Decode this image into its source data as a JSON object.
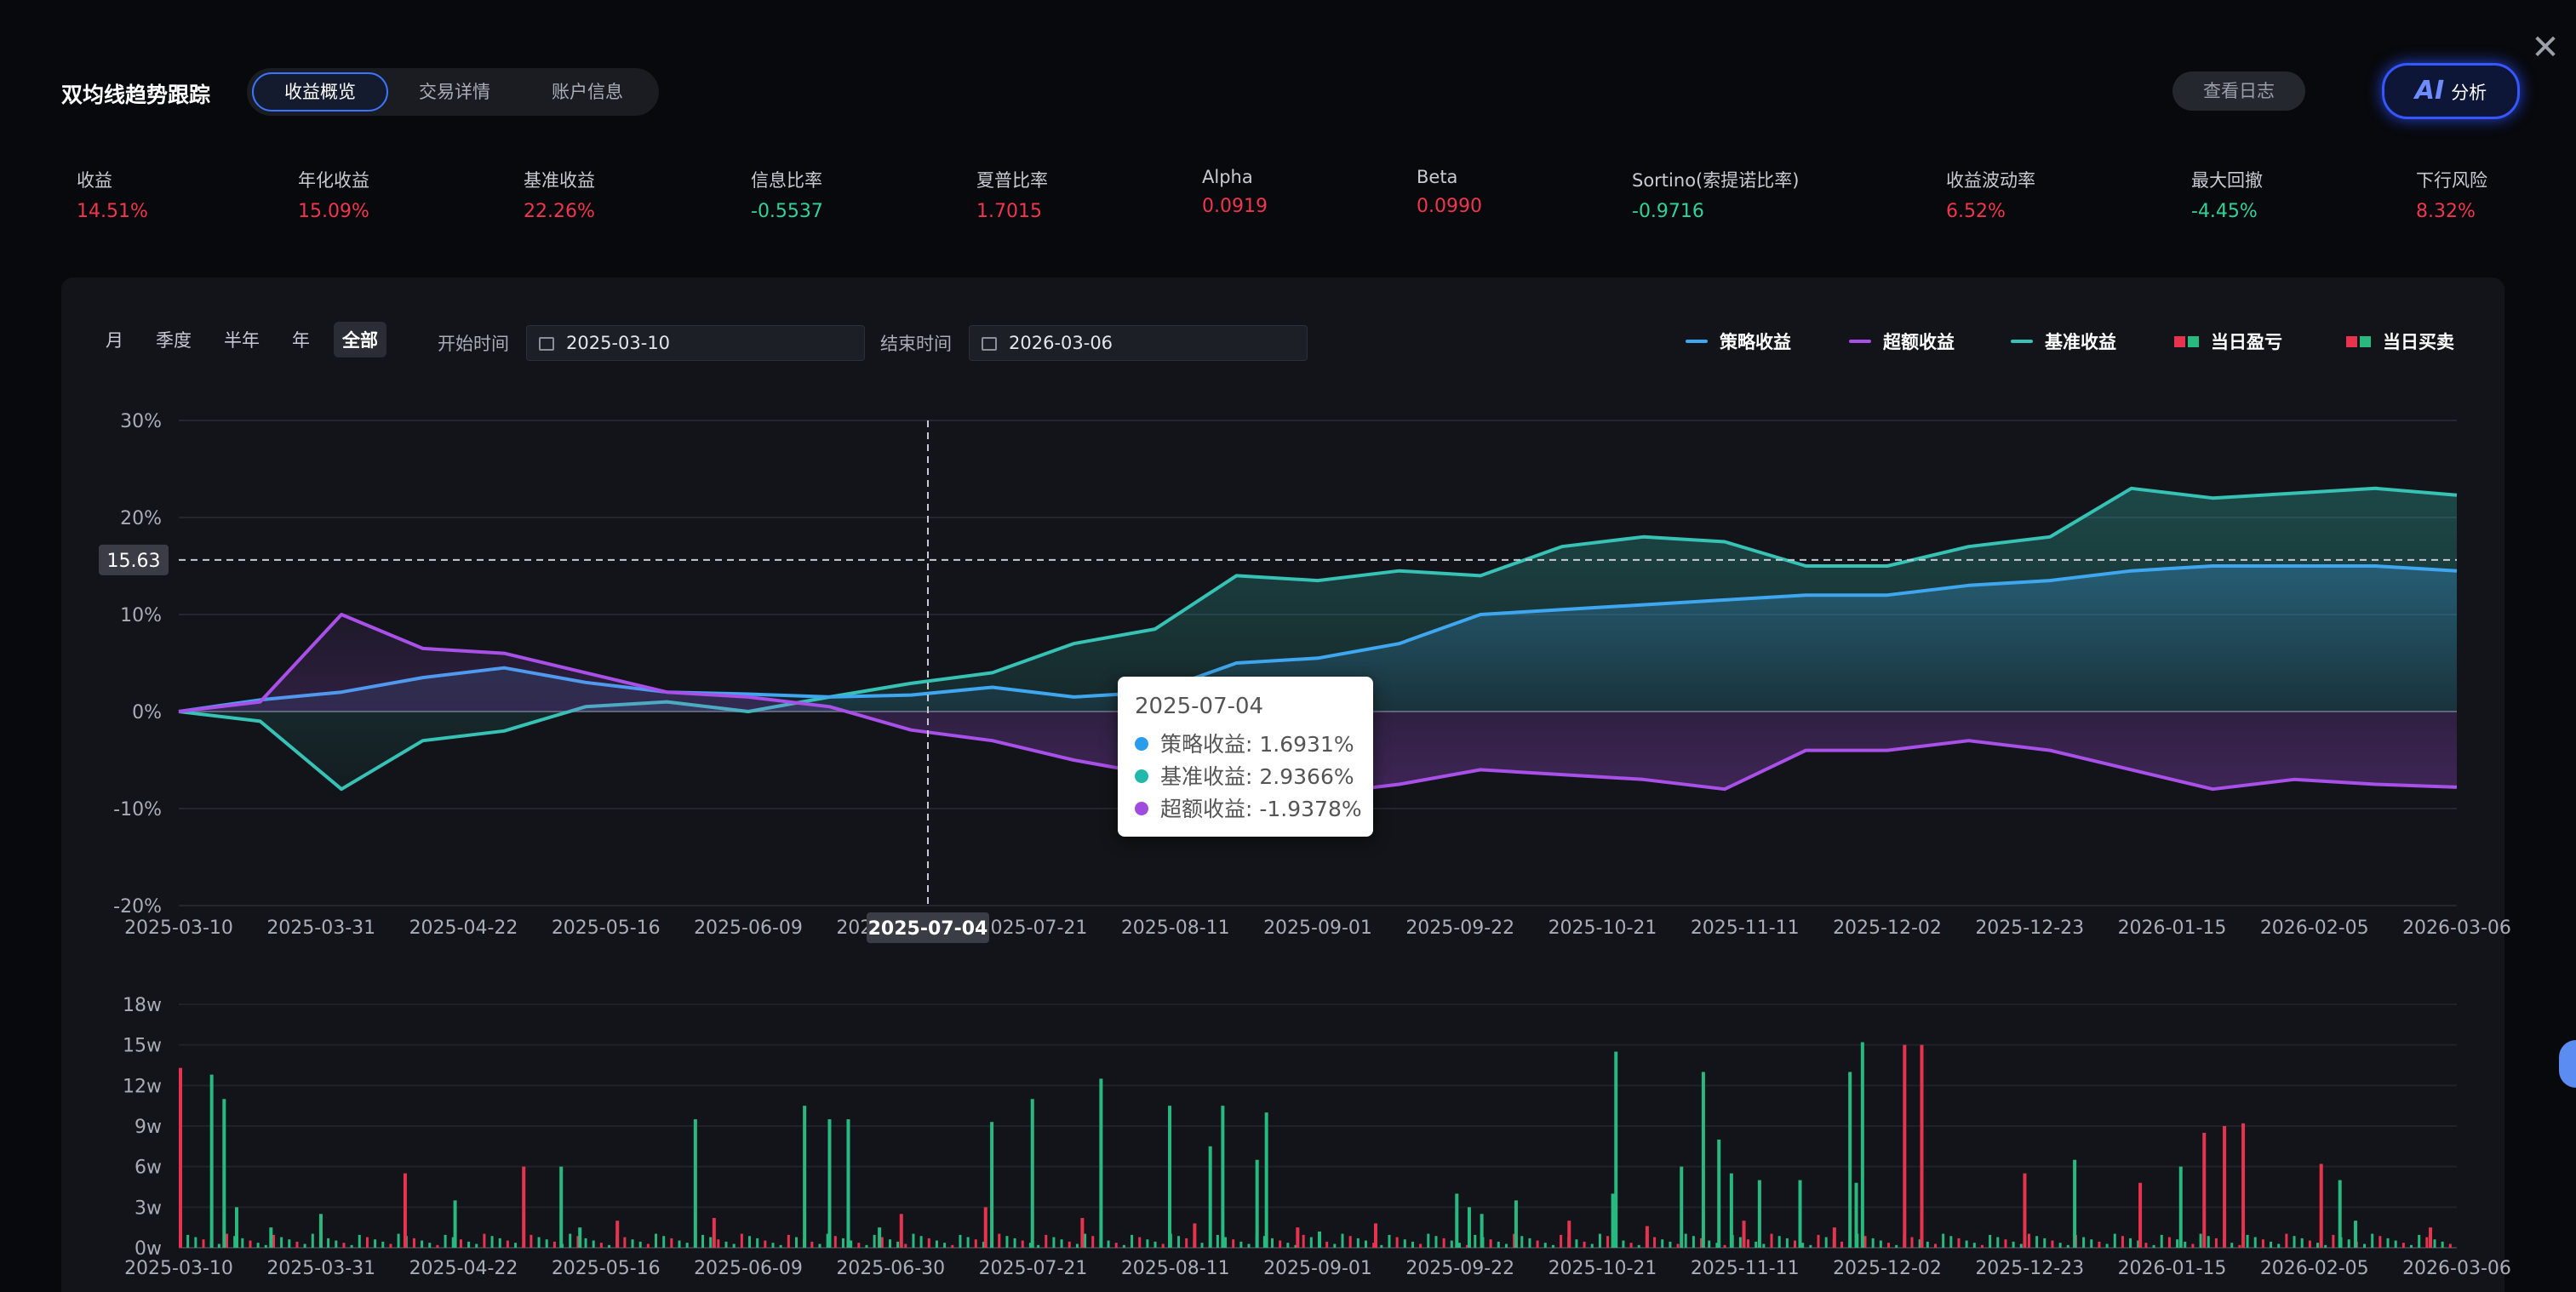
{
  "header": {
    "title": "双均线趋势跟踪",
    "tabs": [
      "收益概览",
      "交易详情",
      "账户信息"
    ],
    "active_tab": "收益概览",
    "log_button": "查看日志",
    "ai_icon_text": "AI",
    "ai_button": "分析"
  },
  "stats": [
    {
      "label": "收益",
      "value": "14.51%",
      "color": "red"
    },
    {
      "label": "年化收益",
      "value": "15.09%",
      "color": "red"
    },
    {
      "label": "基准收益",
      "value": "22.26%",
      "color": "red"
    },
    {
      "label": "信息比率",
      "value": "-0.5537",
      "color": "green"
    },
    {
      "label": "夏普比率",
      "value": "1.7015",
      "color": "red"
    },
    {
      "label": "Alpha",
      "value": "0.0919",
      "color": "red"
    },
    {
      "label": "Beta",
      "value": "0.0990",
      "color": "red"
    },
    {
      "label": "Sortino(索提诺比率)",
      "value": "-0.9716",
      "color": "green"
    },
    {
      "label": "收益波动率",
      "value": "6.52%",
      "color": "red"
    },
    {
      "label": "最大回撤",
      "value": "-4.45%",
      "color": "green"
    },
    {
      "label": "下行风险",
      "value": "8.32%",
      "color": "red"
    }
  ],
  "filters": {
    "periods": [
      "月",
      "季度",
      "半年",
      "年",
      "全部"
    ],
    "active_period": "全部",
    "start_label": "开始时间",
    "start_value": "2025-03-10",
    "end_label": "结束时间",
    "end_value": "2026-03-06"
  },
  "legend": {
    "strategy": "策略收益",
    "excess": "超额收益",
    "benchmark": "基准收益",
    "daily_pnl": "当日盈亏",
    "daily_trade": "当日买卖"
  },
  "colors": {
    "strategy": "#3fa7f0",
    "benchmark": "#36c2b4",
    "excess": "#a850e8",
    "up": "#e8334f",
    "down": "#28b97e",
    "red_text": "#f0354e",
    "green_text": "#2fd39a"
  },
  "crosshair": {
    "y_label": "15.63",
    "x_label": "2025-07-04"
  },
  "tooltip": {
    "date": "2025-07-04",
    "strategy": "策略收益: 1.6931%",
    "benchmark": "基准收益: 2.9366%",
    "excess": "超额收益: -1.9378%"
  },
  "chart_data": [
    {
      "type": "line",
      "x_ticks": [
        "2025-03-10",
        "2025-03-31",
        "2025-04-22",
        "2025-05-16",
        "2025-06-09",
        "2025-06-30",
        "2025-07-21",
        "2025-08-11",
        "2025-09-01",
        "2025-09-22",
        "2025-10-21",
        "2025-11-11",
        "2025-12-02",
        "2025-12-23",
        "2026-01-15",
        "2026-02-05",
        "2026-03-06"
      ],
      "y_ticks": [
        "30%",
        "20%",
        "10%",
        "0%",
        "-10%",
        "-20%"
      ],
      "ylim": [
        -20,
        30
      ],
      "series": [
        {
          "name": "策略收益",
          "values": [
            0,
            1.2,
            2,
            3.5,
            4.5,
            3,
            2,
            1.8,
            1.5,
            1.7,
            2.5,
            1.5,
            2,
            5,
            5.5,
            7,
            10,
            10.5,
            11,
            11.5,
            12,
            12,
            13,
            13.5,
            14.5,
            15,
            15,
            15,
            14.5
          ]
        },
        {
          "name": "基准收益",
          "values": [
            0,
            -1,
            -8,
            -3,
            -2,
            0.5,
            1,
            0,
            1.5,
            2.9,
            4,
            7,
            8.5,
            14,
            13.5,
            14.5,
            14,
            17,
            18,
            17.5,
            15,
            15,
            17,
            18,
            23,
            22,
            22.5,
            23,
            22.3
          ]
        },
        {
          "name": "超额收益",
          "values": [
            0,
            1,
            10,
            6.5,
            6,
            4,
            2,
            1.5,
            0.5,
            -1.9,
            -3,
            -5,
            -6.5,
            -9,
            -8.5,
            -7.5,
            -6,
            -6.5,
            -7,
            -8,
            -4,
            -4,
            -3,
            -4,
            -6,
            -8,
            -7,
            -7.5,
            -7.8
          ]
        }
      ]
    },
    {
      "type": "bar",
      "x_ticks": [
        "2025-03-10",
        "2025-03-31",
        "2025-04-22",
        "2025-05-16",
        "2025-06-09",
        "2025-06-30",
        "2025-07-21",
        "2025-08-11",
        "2025-09-01",
        "2025-09-22",
        "2025-10-21",
        "2025-11-11",
        "2025-12-02",
        "2025-12-23",
        "2026-01-15",
        "2026-02-05",
        "2026-03-06"
      ],
      "y_ticks": [
        "18w",
        "15w",
        "12w",
        "9w",
        "6w",
        "3w",
        "0w"
      ],
      "ylim": [
        0,
        18
      ],
      "series": [
        {
          "name": "当日盈亏",
          "values": [
            [
              0,
              13.3
            ],
            [
              144,
              5.5
            ],
            [
              220,
              6
            ],
            [
              280,
              2
            ],
            [
              342,
              2.2
            ],
            [
              462,
              2.5
            ],
            [
              516,
              3
            ],
            [
              578,
              2.2
            ],
            [
              650,
              1.8
            ],
            [
              716,
              1.5
            ],
            [
              766,
              1.8
            ],
            [
              890,
              2
            ],
            [
              940,
              1.6
            ],
            [
              1002,
              2
            ],
            [
              1060,
              1.5
            ],
            [
              1105,
              15
            ],
            [
              1116,
              15
            ],
            [
              1182,
              5.5
            ],
            [
              1256,
              4.8
            ],
            [
              1297,
              8.5
            ],
            [
              1310,
              9
            ],
            [
              1322,
              9.2
            ],
            [
              1372,
              6.2
            ],
            [
              1442,
              1.5
            ]
          ]
        },
        {
          "name": "当日买卖",
          "values": [
            [
              20,
              12.8
            ],
            [
              28,
              11
            ],
            [
              36,
              3
            ],
            [
              58,
              1.5
            ],
            [
              90,
              2.5
            ],
            [
              176,
              3.5
            ],
            [
              244,
              6
            ],
            [
              256,
              1.5
            ],
            [
              330,
              9.5
            ],
            [
              400,
              10.5
            ],
            [
              416,
              9.5
            ],
            [
              428,
              9.5
            ],
            [
              448,
              1.5
            ],
            [
              520,
              9.3
            ],
            [
              546,
              11
            ],
            [
              590,
              12.5
            ],
            [
              634,
              10.5
            ],
            [
              660,
              7.5
            ],
            [
              668,
              10.5
            ],
            [
              690,
              6.5
            ],
            [
              696,
              10
            ],
            [
              730,
              1.2
            ],
            [
              818,
              4
            ],
            [
              826,
              3
            ],
            [
              834,
              2.5
            ],
            [
              856,
              3.5
            ],
            [
              918,
              4
            ],
            [
              920,
              14.5
            ],
            [
              962,
              6
            ],
            [
              976,
              13
            ],
            [
              986,
              8
            ],
            [
              994,
              5.5
            ],
            [
              1012,
              5
            ],
            [
              1038,
              5
            ],
            [
              1070,
              13
            ],
            [
              1074,
              4.8
            ],
            [
              1078,
              15.2
            ],
            [
              1214,
              6.5
            ],
            [
              1282,
              6
            ],
            [
              1384,
              5
            ],
            [
              1394,
              2
            ]
          ]
        }
      ]
    }
  ]
}
